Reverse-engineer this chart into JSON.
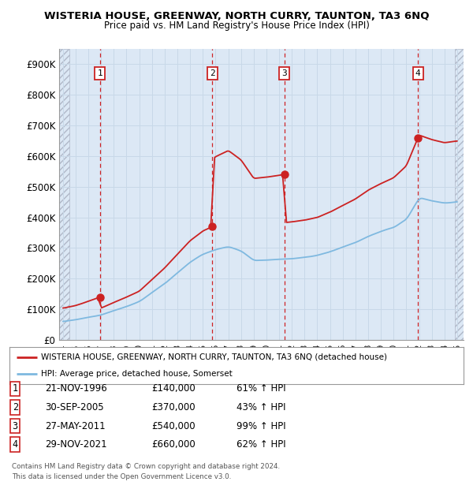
{
  "title": "WISTERIA HOUSE, GREENWAY, NORTH CURRY, TAUNTON, TA3 6NQ",
  "subtitle": "Price paid vs. HM Land Registry's House Price Index (HPI)",
  "ylim": [
    0,
    950000
  ],
  "yticks": [
    0,
    100000,
    200000,
    300000,
    400000,
    500000,
    600000,
    700000,
    800000,
    900000
  ],
  "ytick_labels": [
    "£0",
    "£100K",
    "£200K",
    "£300K",
    "£400K",
    "£500K",
    "£600K",
    "£700K",
    "£800K",
    "£900K"
  ],
  "xlim_start": 1993.7,
  "xlim_end": 2025.5,
  "hatch_end": 1994.5,
  "hatch_start_right": 2024.8,
  "transactions": [
    {
      "year": 1996.9,
      "price": 140000,
      "label": "1"
    },
    {
      "year": 2005.75,
      "price": 370000,
      "label": "2"
    },
    {
      "year": 2011.42,
      "price": 540000,
      "label": "3"
    },
    {
      "year": 2021.92,
      "price": 660000,
      "label": "4"
    }
  ],
  "transaction_dates": [
    "21-NOV-1996",
    "30-SEP-2005",
    "27-MAY-2011",
    "29-NOV-2021"
  ],
  "transaction_prices_str": [
    "£140,000",
    "£370,000",
    "£540,000",
    "£660,000"
  ],
  "transaction_pct": [
    "61% ↑ HPI",
    "43% ↑ HPI",
    "99% ↑ HPI",
    "62% ↑ HPI"
  ],
  "hpi_color": "#7fb9e0",
  "price_color": "#cc2222",
  "grid_color": "#c8d8e8",
  "bg_color": "#dce8f5",
  "hatch_color": "#b0b8c8",
  "legend1": "WISTERIA HOUSE, GREENWAY, NORTH CURRY, TAUNTON, TA3 6NQ (detached house)",
  "legend2": "HPI: Average price, detached house, Somerset",
  "footer1": "Contains HM Land Registry data © Crown copyright and database right 2024.",
  "footer2": "This data is licensed under the Open Government Licence v3.0."
}
